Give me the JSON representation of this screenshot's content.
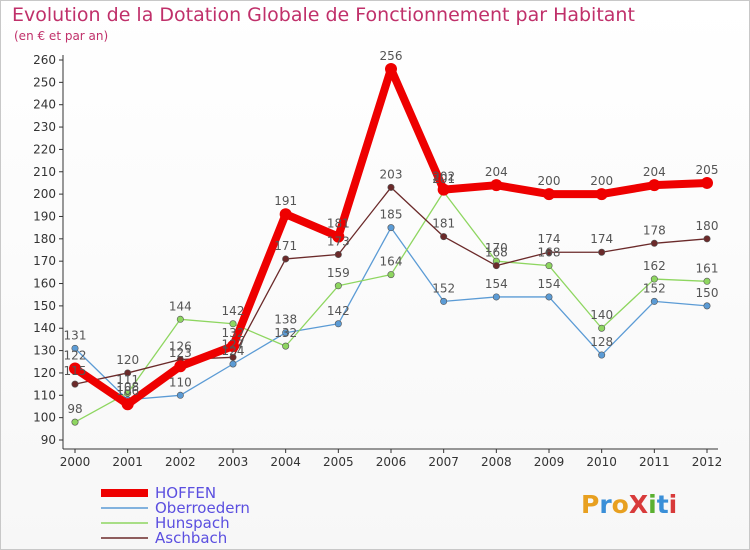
{
  "title": "Evolution de la Dotation Globale de Fonctionnement par Habitant",
  "subtitle": "(en € et par an)",
  "logo": {
    "text": "ProXiti",
    "letters": [
      "P",
      "r",
      "o",
      "X",
      "i",
      "t",
      "i"
    ],
    "colors": [
      "#e8a020",
      "#3a8fd8",
      "#e8a020",
      "#d83a3a",
      "#5ab030",
      "#3a8fd8",
      "#d83a3a"
    ]
  },
  "chart_data": {
    "type": "line",
    "title": "Evolution de la Dotation Globale de Fonctionnement par Habitant",
    "subtitle": "(en € et par an)",
    "x": [
      "2000",
      "2001",
      "2002",
      "2003",
      "2004",
      "2005",
      "2006",
      "2007",
      "2008",
      "2009",
      "2010",
      "2011",
      "2012"
    ],
    "ylim": [
      90,
      260
    ],
    "yticks": [
      90,
      100,
      110,
      120,
      130,
      140,
      150,
      160,
      170,
      180,
      190,
      200,
      210,
      220,
      230,
      240,
      250,
      260
    ],
    "grid": false,
    "legend_position": "bottom-left",
    "series": [
      {
        "name": "HOFFEN",
        "color": "#ee0000",
        "width": 8,
        "values": [
          122,
          106,
          123,
          132,
          191,
          181,
          256,
          202,
          204,
          200,
          200,
          204,
          205
        ]
      },
      {
        "name": "Oberroedern",
        "color": "#5b9bd5",
        "width": 1.3,
        "values": [
          131,
          108,
          110,
          124,
          138,
          142,
          185,
          152,
          154,
          154,
          128,
          152,
          150
        ]
      },
      {
        "name": "Hunspach",
        "color": "#8ed660",
        "width": 1.3,
        "values": [
          98,
          111,
          144,
          142,
          132,
          159,
          164,
          201,
          170,
          168,
          140,
          162,
          161
        ]
      },
      {
        "name": "Aschbach",
        "color": "#6b2a2a",
        "width": 1.3,
        "values": [
          115,
          120,
          126,
          127,
          171,
          173,
          203,
          181,
          168,
          174,
          174,
          178,
          180
        ]
      }
    ],
    "label_rows": [
      [
        "122",
        "106",
        "123",
        "132",
        "191",
        "181",
        "256",
        "202",
        "204",
        "200",
        "200",
        "204",
        "205"
      ],
      [
        "131",
        "108",
        "110",
        "124",
        "138",
        "142",
        "185",
        "152",
        "154",
        "154",
        "128",
        "152",
        "150"
      ],
      [
        "98",
        "111",
        "144",
        "142",
        "132",
        "159",
        "164",
        "201",
        "170",
        "168",
        "140",
        "162",
        "161"
      ],
      [
        "115",
        "120",
        "126",
        "127",
        "171",
        "173",
        "203",
        "181",
        "168",
        "174",
        "174",
        "178",
        "180"
      ]
    ]
  }
}
